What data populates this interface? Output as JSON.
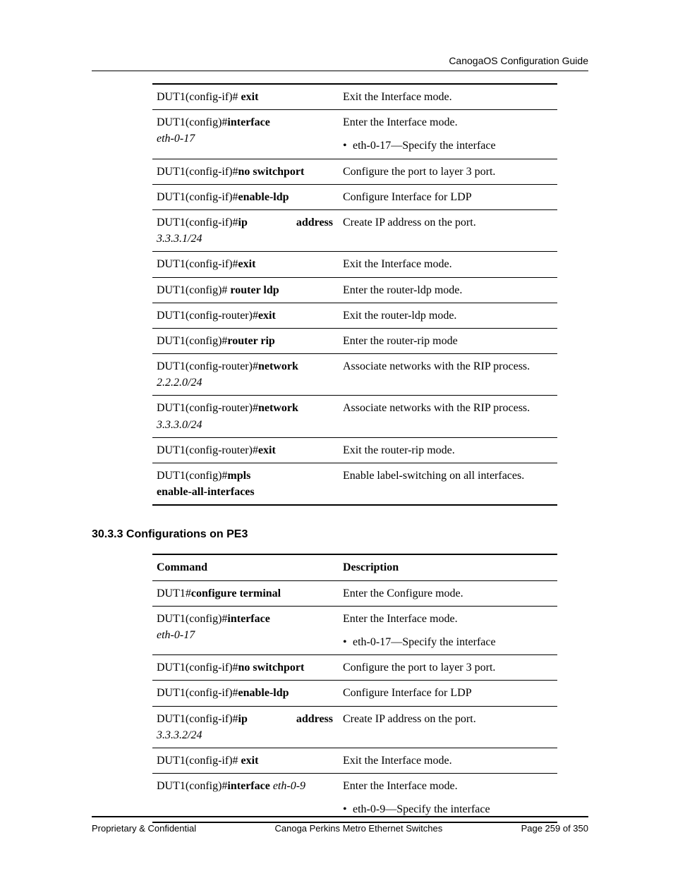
{
  "header": {
    "right": "CanogaOS Configuration Guide"
  },
  "table1": {
    "rows": [
      {
        "cmd_pre": "DUT1(config-if)# ",
        "cmd_bold": "exit",
        "desc": "Exit the Interface mode."
      },
      {
        "cmd_pre": "DUT1(config)#",
        "cmd_bold": "interface",
        "cmd_italic": "eth-0-17",
        "desc": "Enter the Interface mode.",
        "bullet": "eth-0-17—Specify the interface"
      },
      {
        "cmd_pre": "DUT1(config-if)#",
        "cmd_bold": "no switchport",
        "desc": "Configure the port to layer 3 port."
      },
      {
        "cmd_pre": "DUT1(config-if)#",
        "cmd_bold": "enable-ldp",
        "desc": "Configure Interface for LDP"
      },
      {
        "cmd_pre": "DUT1(config-if)#",
        "cmd_bold_spread": "ip address",
        "cmd_italic": "3.3.3.1/24",
        "desc": "Create IP address on the port."
      },
      {
        "cmd_pre": "DUT1(config-if)#",
        "cmd_bold": "exit",
        "desc": "Exit the Interface mode."
      },
      {
        "cmd_pre": "DUT1(config)# ",
        "cmd_bold": "router ldp",
        "desc": "Enter the router-ldp mode."
      },
      {
        "cmd_pre": "DUT1(config-router)#",
        "cmd_bold": "exit",
        "desc": "Exit the router-ldp mode."
      },
      {
        "cmd_pre": "DUT1(config)#",
        "cmd_bold": "router rip",
        "desc": "Enter the router-rip mode"
      },
      {
        "cmd_pre": "DUT1(config-router)#",
        "cmd_bold": "network",
        "cmd_italic": "2.2.2.0/24",
        "desc_just": "Associate networks with the RIP process."
      },
      {
        "cmd_pre": "DUT1(config-router)#",
        "cmd_bold": "network",
        "cmd_italic": "3.3.3.0/24",
        "desc_just": "Associate networks with the RIP process."
      },
      {
        "cmd_pre": "DUT1(config-router)#",
        "cmd_bold": "exit",
        "desc": "Exit the router-rip mode."
      },
      {
        "cmd_pre": "DUT1(config)#",
        "cmd_bold": "mpls",
        "cmd_bold2": "enable-all-interfaces",
        "desc_just": "Enable label-switching on all interfaces."
      }
    ]
  },
  "section_heading": "30.3.3 Configurations on PE3",
  "table2": {
    "header": {
      "cmd": "Command",
      "desc": "Description"
    },
    "rows": [
      {
        "cmd_pre": "DUT1#",
        "cmd_bold": "configure terminal",
        "desc": "Enter the Configure mode."
      },
      {
        "cmd_pre": "DUT1(config)#",
        "cmd_bold": "interface",
        "cmd_italic": "eth-0-17",
        "desc": "Enter the Interface mode.",
        "bullet": "eth-0-17—Specify the interface"
      },
      {
        "cmd_pre": "DUT1(config-if)#",
        "cmd_bold": "no switchport",
        "desc": "Configure the port to layer 3 port."
      },
      {
        "cmd_pre": "DUT1(config-if)#",
        "cmd_bold": "enable-ldp",
        "desc": "Configure Interface for LDP"
      },
      {
        "cmd_pre": "DUT1(config-if)#",
        "cmd_bold_spread": "ip address",
        "cmd_italic": "3.3.3.2/24",
        "desc": "Create IP address on the port."
      },
      {
        "cmd_pre": "DUT1(config-if)# ",
        "cmd_bold": "exit",
        "desc": "Exit the Interface mode."
      },
      {
        "cmd_pre": "DUT1(config)#",
        "cmd_bold": "interface ",
        "cmd_italic_inline": "eth-0-9",
        "desc": "Enter the Interface mode.",
        "bullet": "eth-0-9—Specify the interface"
      }
    ]
  },
  "footer": {
    "left": "Proprietary & Confidential",
    "center": "Canoga Perkins Metro Ethernet Switches",
    "right": "Page 259 of 350"
  }
}
